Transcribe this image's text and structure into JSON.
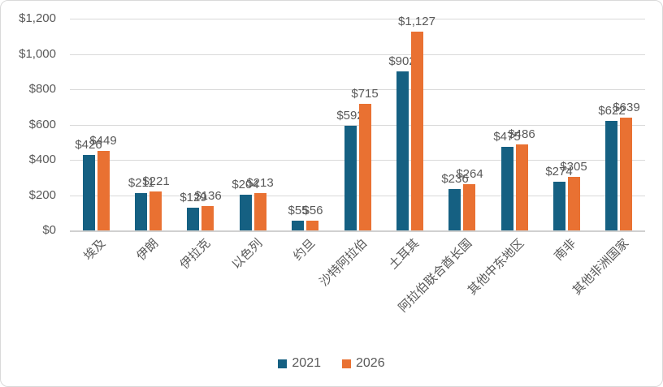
{
  "chart_data": {
    "type": "bar",
    "title": "",
    "xlabel": "",
    "ylabel": "",
    "categories": [
      "埃及",
      "伊朗",
      "伊拉克",
      "以色列",
      "约旦",
      "沙特阿拉伯",
      "土耳其",
      "阿拉伯联合酋长国",
      "其他中东地区",
      "南非",
      "其他非洲国家"
    ],
    "series": [
      {
        "name": "2021",
        "color": "#156082",
        "values": [
          426,
          211,
          129,
          204,
          55,
          592,
          902,
          236,
          475,
          274,
          622
        ],
        "labels": [
          "$426",
          "$211",
          "$129",
          "$204",
          "$55",
          "$592",
          "$902",
          "$236",
          "$475",
          "$274",
          "$622"
        ]
      },
      {
        "name": "2026",
        "color": "#E97132",
        "values": [
          449,
          221,
          136,
          213,
          56,
          715,
          1127,
          264,
          486,
          305,
          639
        ],
        "labels": [
          "$449",
          "$221",
          "$136",
          "$213",
          "$56",
          "$715",
          "$1,127",
          "$264",
          "$486",
          "$305",
          "$639"
        ]
      }
    ],
    "ylim": [
      0,
      1200
    ],
    "y_tick_step": 200,
    "y_ticks": [
      "$0",
      "$200",
      "$400",
      "$600",
      "$800",
      "$1,000",
      "$1,200"
    ],
    "grid": true,
    "legend_position": "bottom"
  },
  "colors": {
    "series_2021": "#156082",
    "series_2026": "#E97132",
    "gridline": "#D9D9D9",
    "axis_line": "#D0D0D0",
    "label_text": "#595959",
    "chart_border": "#D9D9D9",
    "background": "#FFFFFF"
  }
}
